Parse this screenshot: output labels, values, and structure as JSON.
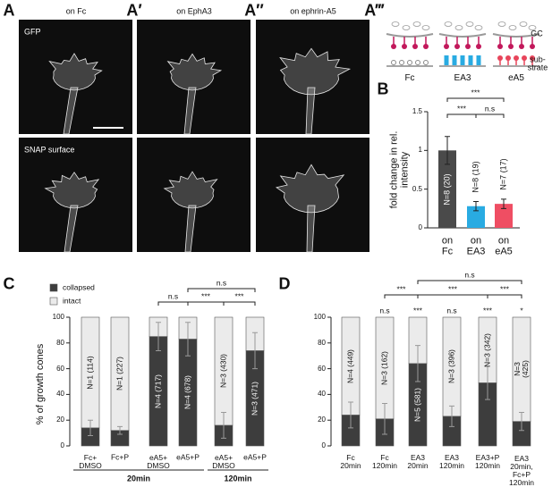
{
  "panel_labels": [
    "A",
    "A′",
    "A″",
    "A‴",
    "B",
    "C",
    "D"
  ],
  "images": {
    "titles": [
      "on Fc",
      "on EphA3",
      "on ephrin-A5"
    ],
    "channels": [
      "GFP",
      "SNAP surface"
    ]
  },
  "schematic": {
    "gc": "GC",
    "substrate": "sub-\nstrate",
    "conditions": [
      "Fc",
      "EA3",
      "eA5"
    ]
  },
  "chart_data": [
    {
      "type": "bar",
      "ylabel": "fold change in rel.\nintensity",
      "categories": [
        "on\nFc",
        "on\nEA3",
        "on\neA5"
      ],
      "values": [
        1,
        0.28,
        0.31
      ],
      "errors": [
        0.18,
        0.06,
        0.06
      ],
      "colors": [
        "#4a4a4a",
        "#29abe2",
        "#ef4e63"
      ],
      "bar_labels": [
        "N=8 (20)",
        "N=8 (19)",
        "N=7 (17)"
      ],
      "ylim": [
        0,
        1.5
      ],
      "yticks": [
        0,
        0.5,
        1,
        1.5
      ],
      "annotations": [
        "***",
        "***",
        "n.s"
      ]
    },
    {
      "type": "stacked_bar",
      "ylabel": "% of growth cones",
      "legend": true,
      "categories": [
        "Fc+\nDMSO",
        "Fc+P",
        "eA5+\nDMSO",
        "eA5+P",
        "eA5+\nDMSO",
        "eA5+P"
      ],
      "series": [
        {
          "name": "collapsed",
          "color": "#3d3d3d",
          "values": [
            14,
            12,
            85,
            83,
            16,
            74
          ]
        },
        {
          "name": "intact",
          "color": "#ebebeb",
          "values": [
            86,
            88,
            15,
            17,
            84,
            26
          ]
        }
      ],
      "errors": [
        6,
        3,
        11,
        13,
        10,
        14
      ],
      "bar_labels": [
        "N=1 (114)",
        "N=1 (227)",
        "N=4 (717)",
        "N=4 (678)",
        "N=3 (430)",
        "N=3 (471)"
      ],
      "groups": [
        "20min",
        "120min"
      ],
      "ylim": [
        0,
        100
      ],
      "yticks": [
        0,
        20,
        40,
        60,
        80,
        100
      ],
      "annotations": [
        "n.s",
        "***",
        "***",
        "n.s"
      ]
    },
    {
      "type": "stacked_bar",
      "legend": false,
      "categories": [
        "Fc\n20min",
        "Fc\n120min",
        "EA3\n20min",
        "EA3\n120min",
        "EA3+P\n120min",
        "EA3\n20min,\nFc+P\n120min"
      ],
      "series": [
        {
          "name": "collapsed",
          "color": "#3d3d3d",
          "values": [
            24,
            21,
            64,
            23,
            49,
            19
          ]
        },
        {
          "name": "intact",
          "color": "#ebebeb",
          "values": [
            76,
            79,
            36,
            77,
            51,
            81
          ]
        }
      ],
      "errors": [
        10,
        12,
        14,
        8,
        13,
        7
      ],
      "bar_labels": [
        "N=4 (449)",
        "N=3 (162)",
        "N=5 (581)",
        "N=3 (396)",
        "N=3 (342)",
        "N=3 (425)"
      ],
      "ylim": [
        0,
        100
      ],
      "yticks": [
        0,
        20,
        40,
        60,
        80,
        100
      ],
      "bar_annotations": [
        null,
        "n.s",
        "***",
        "n.s",
        "***",
        "*"
      ],
      "annotations": [
        "***",
        "***",
        "***",
        "n.s"
      ]
    }
  ]
}
